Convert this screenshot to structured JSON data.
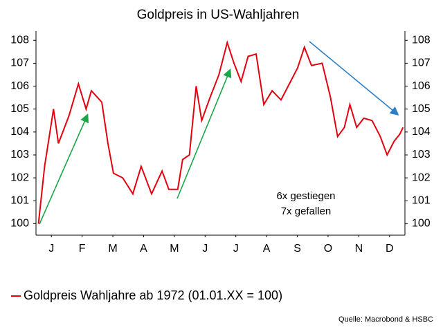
{
  "chart_data": {
    "type": "line",
    "title": "Goldpreis in US-Wahljahren",
    "xlim": [
      0,
      12
    ],
    "xticks": [
      {
        "value": 0.5,
        "label": "J"
      },
      {
        "value": 1.5,
        "label": "F"
      },
      {
        "value": 2.5,
        "label": "M"
      },
      {
        "value": 3.5,
        "label": "A"
      },
      {
        "value": 4.5,
        "label": "M"
      },
      {
        "value": 5.5,
        "label": "J"
      },
      {
        "value": 6.5,
        "label": "J"
      },
      {
        "value": 7.5,
        "label": "A"
      },
      {
        "value": 8.5,
        "label": "S"
      },
      {
        "value": 9.5,
        "label": "O"
      },
      {
        "value": 10.5,
        "label": "N"
      },
      {
        "value": 11.5,
        "label": "D"
      }
    ],
    "ylim": [
      99.5,
      108.4
    ],
    "yticks": [
      100,
      101,
      102,
      103,
      104,
      105,
      106,
      107,
      108
    ],
    "y2lim": [
      99.5,
      108.4
    ],
    "y2ticks": [
      100,
      101,
      102,
      103,
      104,
      105,
      106,
      107,
      108
    ],
    "x": [
      0.08,
      0.28,
      0.57,
      0.73,
      1.07,
      1.38,
      1.63,
      1.8,
      2.14,
      2.34,
      2.52,
      2.82,
      3.15,
      3.42,
      3.76,
      4.1,
      4.32,
      4.61,
      4.77,
      4.99,
      5.21,
      5.39,
      5.66,
      5.95,
      6.22,
      6.44,
      6.67,
      6.9,
      7.16,
      7.41,
      7.68,
      7.97,
      8.24,
      8.51,
      8.73,
      8.96,
      9.31,
      9.58,
      9.81,
      10.03,
      10.21,
      10.43,
      10.66,
      10.93,
      11.2,
      11.42,
      11.65,
      11.83,
      11.94
    ],
    "series": [
      {
        "name": "Goldpreis Wahljahre ab 1972 (01.01.XX = 100)",
        "color": "#e3000f",
        "values": [
          100,
          102.5,
          105,
          103.5,
          104.7,
          106.1,
          105,
          105.8,
          105.3,
          103.5,
          102.2,
          102,
          101.3,
          102.5,
          101.3,
          102.3,
          101.5,
          101.5,
          102.8,
          103,
          106,
          104.5,
          105.5,
          106.5,
          107.9,
          107,
          106.2,
          107.3,
          107.4,
          105.2,
          105.8,
          105.4,
          106.1,
          106.8,
          107.7,
          106.9,
          107,
          105.5,
          103.8,
          104.2,
          105.2,
          104.2,
          104.6,
          104.5,
          103.8,
          103,
          103.6,
          103.9,
          104.2
        ]
      }
    ],
    "annotations": [
      "6x gestiegen",
      "7x gefallen"
    ],
    "source": "Quelle: Macrobond & HSBC"
  }
}
